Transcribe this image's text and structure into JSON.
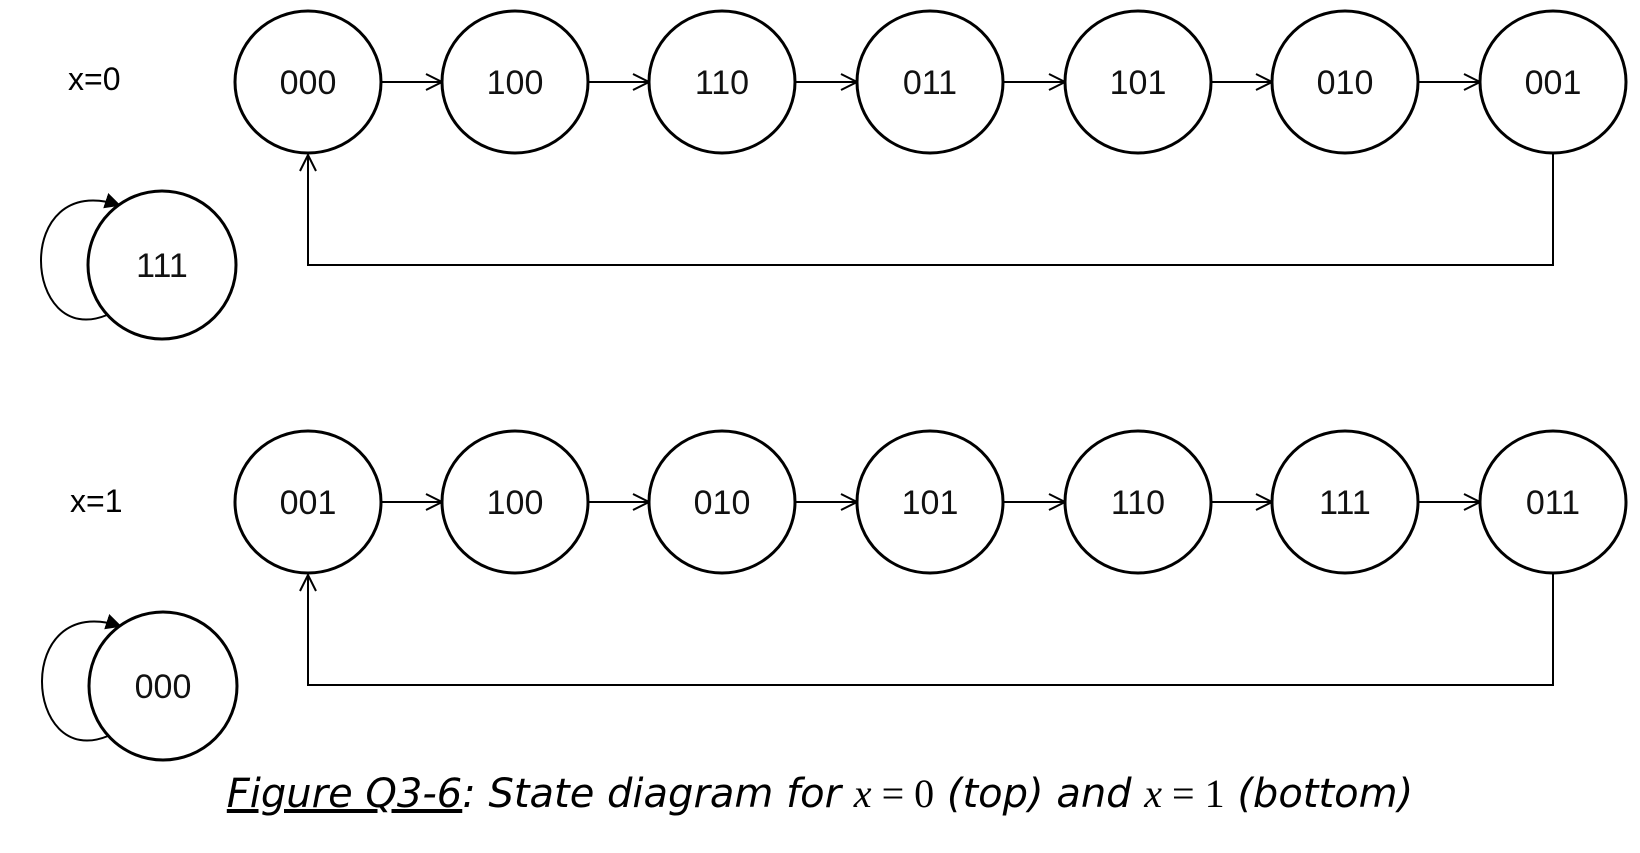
{
  "diagrams": [
    {
      "label": "x=0",
      "states": [
        "000",
        "100",
        "110",
        "011",
        "101",
        "010",
        "001"
      ],
      "isolated_state": "111"
    },
    {
      "label": "x=1",
      "states": [
        "001",
        "100",
        "010",
        "101",
        "110",
        "111",
        "011"
      ],
      "isolated_state": "000"
    }
  ],
  "caption": {
    "figure_ref": "Figure Q3-6",
    "text_1": ": State diagram for ",
    "var_1": "x",
    "eq_1": " = 0",
    "text_2": " (top) and ",
    "var_2": "x",
    "eq_2": " = 1",
    "text_3": " (bottom)"
  }
}
